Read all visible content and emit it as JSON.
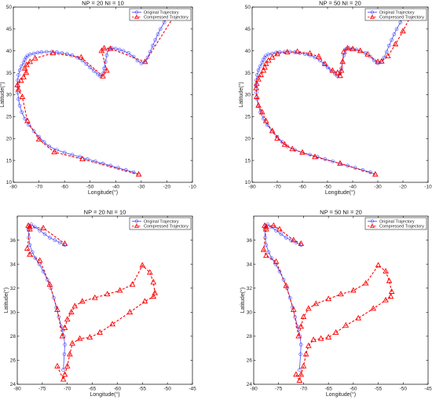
{
  "legend_labels": {
    "original": "Original Trajectory",
    "compressed": "Compressed Trajectory"
  },
  "colors": {
    "original": "#4a4aff",
    "compressed": "#ff0000",
    "axis": "#000000"
  },
  "chart_data": [
    {
      "type": "line",
      "title": "NP = 20  NI = 10",
      "xlabel": "Longitude(°)",
      "ylabel": "Latitude(°)",
      "xlim": [
        -80,
        -10
      ],
      "ylim": [
        10,
        50
      ],
      "xticks": [
        -80,
        -70,
        -60,
        -50,
        -40,
        -30,
        -20,
        -10
      ],
      "yticks": [
        10,
        15,
        20,
        25,
        30,
        35,
        40,
        45,
        50
      ],
      "legend": "top-right",
      "series": [
        {
          "name": "Original Trajectory",
          "x": [
            -31,
            -33,
            -36,
            -39,
            -42,
            -45,
            -48,
            -51,
            -54,
            -57,
            -60,
            -63,
            -66,
            -68,
            -70,
            -72,
            -74,
            -75.5,
            -76.7,
            -77.5,
            -78,
            -78.3,
            -78.4,
            -78.3,
            -78,
            -77.5,
            -76.8,
            -76,
            -75.5,
            -75,
            -74.5,
            -73.5,
            -72,
            -70.5,
            -69,
            -67,
            -65,
            -63,
            -61,
            -59,
            -57,
            -55,
            -53,
            -51.5,
            -50,
            -48.5,
            -47,
            -46,
            -45,
            -44.5,
            -44,
            -43.5,
            -43,
            -42.5,
            -41.5,
            -40,
            -38.5,
            -37,
            -35,
            -33,
            -31.5,
            -30,
            -28.5,
            -27.5,
            -26.5,
            -25.5,
            -24.5,
            -23.5,
            -22.5,
            -21,
            -20,
            -19.5
          ],
          "y": [
            11.8,
            12.3,
            12.8,
            13.3,
            13.8,
            14.3,
            14.8,
            15.3,
            15.8,
            16.3,
            16.8,
            17.4,
            18.2,
            19.2,
            20.4,
            21.7,
            23.1,
            24.5,
            26,
            27.5,
            29,
            30.5,
            32,
            33.3,
            34.5,
            35.6,
            36.5,
            37.3,
            38,
            38.5,
            38.9,
            39.2,
            39.4,
            39.6,
            39.7,
            39.8,
            39.8,
            39.7,
            39.5,
            39.3,
            39,
            38.5,
            37.8,
            37,
            36.2,
            35.4,
            34.7,
            34.2,
            34.8,
            36,
            37.5,
            39,
            40.2,
            40.5,
            40.6,
            40.5,
            40.3,
            40,
            39.5,
            38.7,
            37.8,
            37.2,
            37.5,
            38.5,
            39.8,
            41.2,
            42.5,
            43.8,
            45,
            46.5,
            47.8,
            48.5
          ]
        },
        {
          "name": "Compressed Trajectory",
          "x": [
            -31,
            -53,
            -64,
            -70,
            -74.5,
            -76.5,
            -78,
            -78.4,
            -77,
            -76,
            -75,
            -75.5,
            -74.8,
            -73.5,
            -71.5,
            -64.5,
            -53.5,
            -45,
            -43.5,
            -45.5,
            -44.5,
            -42,
            -28.5,
            -16
          ],
          "y": [
            11.8,
            15.3,
            16.9,
            19.8,
            24,
            29.5,
            31.2,
            32.2,
            33.2,
            34,
            35,
            36,
            36.8,
            37.5,
            38.3,
            39.5,
            38.5,
            34.2,
            35.5,
            40,
            40.6,
            40.5,
            37.5,
            49
          ]
        }
      ]
    },
    {
      "type": "line",
      "title": "NP = 50  NI = 20",
      "xlabel": "Longitude(°)",
      "ylabel": "Latitude(°)",
      "xlim": [
        -80,
        -10
      ],
      "ylim": [
        10,
        50
      ],
      "xticks": [
        -80,
        -70,
        -60,
        -50,
        -40,
        -30,
        -20,
        -10
      ],
      "yticks": [
        10,
        15,
        20,
        25,
        30,
        35,
        40,
        45,
        50
      ],
      "legend": "top-right",
      "series": [
        {
          "name": "Original Trajectory",
          "x": [
            -31,
            -33,
            -36,
            -39,
            -42,
            -45,
            -48,
            -51,
            -54,
            -57,
            -60,
            -63,
            -66,
            -68,
            -70,
            -72,
            -74,
            -75.5,
            -76.7,
            -77.5,
            -78,
            -78.3,
            -78.4,
            -78.3,
            -78,
            -77.5,
            -76.8,
            -76,
            -75.5,
            -75,
            -74.5,
            -73.5,
            -72,
            -70.5,
            -69,
            -67,
            -65,
            -63,
            -61,
            -59,
            -57,
            -55,
            -53,
            -51.5,
            -50,
            -48.5,
            -47,
            -46,
            -45,
            -44.5,
            -44,
            -43.5,
            -43,
            -42.5,
            -41.5,
            -40,
            -38.5,
            -37,
            -35,
            -33,
            -31.5,
            -30,
            -28.5,
            -27.5,
            -26.5,
            -25.5,
            -24.5,
            -23.5,
            -22.5,
            -21,
            -20,
            -19.5
          ],
          "y": [
            11.8,
            12.3,
            12.8,
            13.3,
            13.8,
            14.3,
            14.8,
            15.3,
            15.8,
            16.3,
            16.8,
            17.4,
            18.2,
            19.2,
            20.4,
            21.7,
            23.1,
            24.5,
            26,
            27.5,
            29,
            30.5,
            32,
            33.3,
            34.5,
            35.6,
            36.5,
            37.3,
            38,
            38.5,
            38.9,
            39.2,
            39.4,
            39.6,
            39.7,
            39.8,
            39.8,
            39.7,
            39.5,
            39.3,
            39,
            38.5,
            37.8,
            37,
            36.2,
            35.4,
            34.7,
            34.2,
            34.8,
            36,
            37.5,
            39,
            40.2,
            40.5,
            40.6,
            40.5,
            40.3,
            40,
            39.5,
            38.7,
            37.8,
            37.2,
            37.5,
            38.5,
            39.8,
            41.2,
            42.5,
            43.8,
            45,
            46.5,
            47.8,
            48.5
          ]
        },
        {
          "name": "Compressed Trajectory",
          "x": [
            -31,
            -45,
            -55,
            -60,
            -64,
            -67,
            -70,
            -72,
            -74.5,
            -76,
            -77.5,
            -78.2,
            -78.4,
            -78.2,
            -77.5,
            -76.5,
            -75.5,
            -75,
            -74.5,
            -73.5,
            -72,
            -70,
            -66,
            -62,
            -57,
            -53.5,
            -51,
            -48,
            -46,
            -45,
            -44.5,
            -44,
            -43.5,
            -42,
            -40,
            -37,
            -34,
            -30,
            -28.5,
            -26,
            -23,
            -20,
            -16
          ],
          "y": [
            11.8,
            14.3,
            15.8,
            16.8,
            17.6,
            18.6,
            20,
            21.7,
            24,
            26,
            27.5,
            29.5,
            31.5,
            32.5,
            33.5,
            34.5,
            35.5,
            36.2,
            37,
            37.8,
            38.5,
            39.3,
            39.7,
            39.8,
            39.4,
            38.7,
            37,
            35.5,
            35,
            34.3,
            35.5,
            37.5,
            39.8,
            40.6,
            40.4,
            40,
            39.2,
            37.5,
            37.6,
            38.8,
            41.5,
            44.5,
            49
          ]
        }
      ]
    },
    {
      "type": "line",
      "title": "NP = 20  NI = 10",
      "xlabel": "Longitude(°)",
      "ylabel": "Latitude(°)",
      "xlim": [
        -80,
        -45
      ],
      "ylim": [
        24,
        38
      ],
      "xticks": [
        -80,
        -75,
        -70,
        -65,
        -60,
        -55,
        -50,
        -45
      ],
      "yticks": [
        24,
        26,
        28,
        30,
        32,
        34,
        36
      ],
      "legend": "top-right",
      "series": [
        {
          "name": "Original Trajectory",
          "x": [
            -70.8,
            -70.6,
            -70.5,
            -70.7,
            -71.2,
            -71.7,
            -72.2,
            -72.7,
            -73.3,
            -74,
            -74.8,
            -75.6,
            -76.4,
            -77,
            -77.5,
            -77.7,
            -77.8,
            -77.6,
            -77.2,
            -76.5,
            -75.5,
            -74.5,
            -73.5,
            -72.5,
            -71.5,
            -70.5
          ],
          "y": [
            25.2,
            26.5,
            27.3,
            28,
            28.8,
            29.6,
            30.4,
            31.2,
            32,
            32.7,
            33.4,
            34,
            34.5,
            35,
            35.6,
            36.2,
            36.9,
            37.2,
            37.3,
            37.1,
            36.8,
            36.5,
            36.2,
            36,
            35.8,
            35.6
          ]
        },
        {
          "name": "Compressed Trajectory",
          "x": [
            -72,
            -70.8,
            -70.5,
            -70,
            -69.5,
            -69,
            -67.5,
            -65.5,
            -63.5,
            -61,
            -57.5,
            -54.5,
            -52.8,
            -52.5,
            -52.8,
            -53.5,
            -55,
            -57,
            -59.5,
            -62,
            -64.5,
            -67,
            -68.5,
            -69.2,
            -70,
            -70.5,
            -71,
            -72,
            -73.5,
            -75.5,
            -77.5,
            -78,
            -77.5,
            -77.8,
            -77.5,
            -74.8,
            -70.5
          ],
          "y": [
            25.5,
            24.4,
            24.8,
            25.5,
            26.5,
            27.4,
            27.8,
            27.9,
            28.3,
            29,
            30,
            30.9,
            31.3,
            31.6,
            32.5,
            33.3,
            33.9,
            32.3,
            31.8,
            31.5,
            31.2,
            30.9,
            30.5,
            30,
            29.4,
            28.7,
            28,
            30.2,
            32.3,
            34.3,
            34.8,
            35.3,
            36.9,
            37.2,
            37.1,
            37,
            35.7
          ]
        }
      ]
    },
    {
      "type": "line",
      "title": "NP = 50  NI = 20",
      "xlabel": "Longitude(°)",
      "ylabel": "Latitude(°)",
      "xlim": [
        -80,
        -45
      ],
      "ylim": [
        24,
        38
      ],
      "xticks": [
        -80,
        -75,
        -70,
        -65,
        -60,
        -55,
        -50,
        -45
      ],
      "yticks": [
        24,
        26,
        28,
        30,
        32,
        34,
        36
      ],
      "legend": "top-right",
      "series": [
        {
          "name": "Original Trajectory",
          "x": [
            -70.8,
            -70.6,
            -70.5,
            -70.7,
            -71.2,
            -71.7,
            -72.2,
            -72.7,
            -73.3,
            -74,
            -74.8,
            -75.6,
            -76.4,
            -77,
            -77.5,
            -77.7,
            -77.8,
            -77.6,
            -77.2,
            -76.5,
            -75.5,
            -74.5,
            -73.5,
            -72.5,
            -71.5,
            -70.5
          ],
          "y": [
            25.2,
            26.5,
            27.3,
            28,
            28.8,
            29.6,
            30.4,
            31.2,
            32,
            32.7,
            33.4,
            34,
            34.5,
            35,
            35.6,
            36.2,
            36.9,
            37.2,
            37.3,
            37.1,
            36.8,
            36.5,
            36.2,
            36,
            35.8,
            35.6
          ]
        },
        {
          "name": "Compressed Trajectory",
          "x": [
            -71.5,
            -70.8,
            -70.5,
            -70,
            -69.5,
            -69,
            -68,
            -66.5,
            -65,
            -63.5,
            -61.5,
            -59,
            -56,
            -53.5,
            -52.5,
            -52.3,
            -52.8,
            -53.5,
            -55,
            -57.5,
            -60,
            -62.5,
            -65,
            -67.5,
            -69,
            -70,
            -70.5,
            -71,
            -72,
            -73.5,
            -75.5,
            -77.5,
            -78,
            -77.5,
            -77.8,
            -77.5,
            -76,
            -74.8,
            -72,
            -70.5
          ],
          "y": [
            24.8,
            24.3,
            24.8,
            25.5,
            26.5,
            27.2,
            27.7,
            27.8,
            27.9,
            28.3,
            28.9,
            29.5,
            30.3,
            31,
            31.3,
            31.7,
            32.6,
            33.4,
            33.9,
            32.4,
            31.8,
            31.5,
            31.1,
            30.7,
            30.3,
            29.6,
            28.8,
            28,
            30.2,
            32.2,
            34.2,
            34.7,
            35.2,
            36.9,
            37.2,
            37.1,
            37.2,
            36.9,
            36,
            35.7
          ]
        }
      ]
    }
  ]
}
